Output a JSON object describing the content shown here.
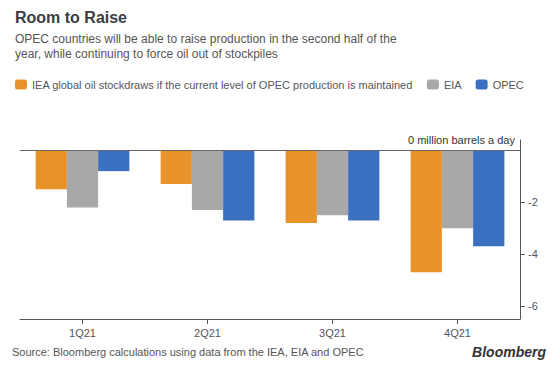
{
  "chart_data": {
    "type": "bar",
    "title": "Room to Raise",
    "subtitle": "OPEC countries will be able to raise production in the second half of the\nyear, while continuing to force oil out of stockpiles",
    "categories": [
      "1Q21",
      "2Q21",
      "3Q21",
      "4Q21"
    ],
    "series": [
      {
        "name": "IEA global oil stockdraws if the current level of OPEC production is maintained",
        "color": "#E8922A",
        "values": [
          -1.5,
          -1.3,
          -2.8,
          -4.7
        ]
      },
      {
        "name": "EIA",
        "color": "#A8A8A8",
        "values": [
          -2.2,
          -2.3,
          -2.5,
          -3.0
        ]
      },
      {
        "name": "OPEC",
        "color": "#3B70C0",
        "values": [
          -0.8,
          -2.7,
          -2.7,
          -3.7
        ]
      }
    ],
    "annotations": [
      "0 million barrels a day",
      "Source: Bloomberg calculations using data from the IEA, EIA and OPEC",
      "Bloomberg"
    ],
    "ylim": [
      -6.5,
      0.4
    ],
    "yticks": [
      -2,
      -4,
      -6
    ],
    "grid": false,
    "legend": "top"
  }
}
